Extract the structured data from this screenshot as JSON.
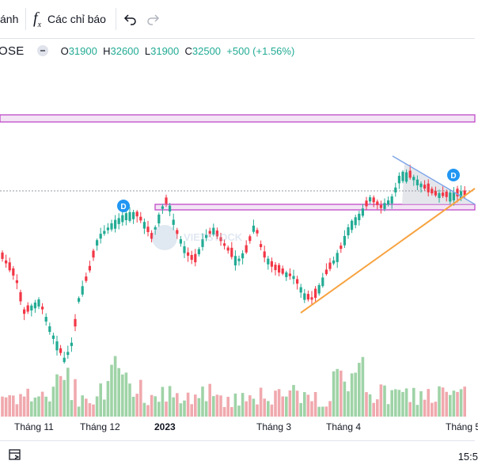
{
  "toolbar": {
    "partial_label": "ánh",
    "indicators_label": "Các chỉ báo",
    "fx_symbol": "f",
    "fx_sub": "x",
    "undo_icon": "undo-icon",
    "redo_icon": "redo-icon"
  },
  "legend": {
    "symbol": "OSE",
    "open_label": "O",
    "open": "31900",
    "high_label": "H",
    "high": "32600",
    "low_label": "L",
    "low": "31900",
    "close_label": "C",
    "close": "32500",
    "change": "+500 (+1.56%)"
  },
  "watermark": "VIETSTOCK",
  "chart_data": {
    "type": "candlestick",
    "x_ticks": [
      "Tháng 11",
      "Tháng 12",
      "2023",
      "Tháng 3",
      "Tháng 4",
      "Tháng 5"
    ],
    "annotations": [
      "D",
      "D"
    ],
    "colors": {
      "up": "#22ab94",
      "down": "#f23645",
      "volume_up": "#9fd3a7",
      "volume_down": "#f0a9ae",
      "support": "#f7a340",
      "channel": "#ce93d8",
      "trend": "#5b9cf6"
    }
  },
  "bottom": {
    "time": "15:5",
    "range_icon": "calendar-range-icon"
  }
}
